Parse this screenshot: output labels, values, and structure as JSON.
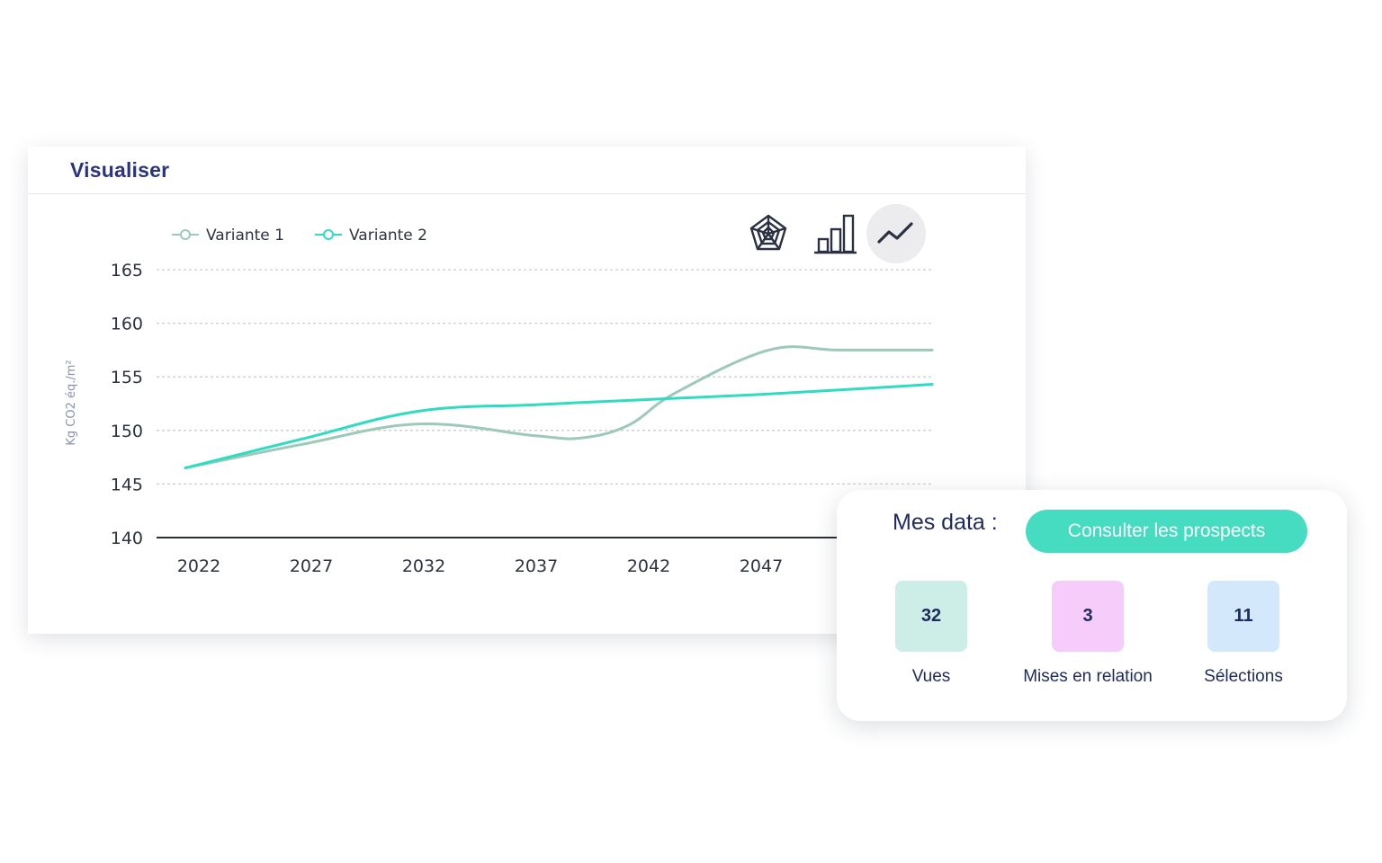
{
  "card": {
    "title": "Visualiser",
    "view_buttons": [
      {
        "icon": "radar-chart-icon",
        "active": false
      },
      {
        "icon": "bar-chart-icon",
        "active": false
      },
      {
        "icon": "line-chart-icon",
        "active": true
      }
    ]
  },
  "chart_data": {
    "type": "line",
    "ylabel": "Kg CO2 éq./m²",
    "xlabel": "",
    "yticks": [
      140,
      145,
      150,
      155,
      160,
      165
    ],
    "ylim": [
      140,
      165
    ],
    "xticks": [
      2022,
      2027,
      2032,
      2037,
      2042,
      2047
    ],
    "xlim": [
      2022,
      2054
    ],
    "grid": true,
    "legend_position": "top-left",
    "series": [
      {
        "name": "Variante 1",
        "color": "#9cc9b9",
        "x": [
          2022,
          2027,
          2032,
          2037,
          2039,
          2041,
          2043,
          2047,
          2050,
          2054
        ],
        "y": [
          146.5,
          148.7,
          150.6,
          149.5,
          149.3,
          150.5,
          153.5,
          157.5,
          157.5,
          157.5
        ]
      },
      {
        "name": "Variante 2",
        "color": "#2fdcc2",
        "x": [
          2022,
          2027,
          2032,
          2037,
          2042,
          2047,
          2054
        ],
        "y": [
          146.5,
          149.2,
          151.8,
          152.4,
          152.9,
          153.4,
          154.3
        ]
      }
    ]
  },
  "data_panel": {
    "title": "Mes data :",
    "button_label": "Consulter les prospects",
    "accent_color": "#46dcc1",
    "stats": [
      {
        "value": "32",
        "label": "Vues",
        "color": "#cdeee6"
      },
      {
        "value": "3",
        "label": "Mises en relation",
        "color": "#f6ccfa"
      },
      {
        "value": "11",
        "label": "Sélections",
        "color": "#d3e8fb"
      }
    ]
  }
}
